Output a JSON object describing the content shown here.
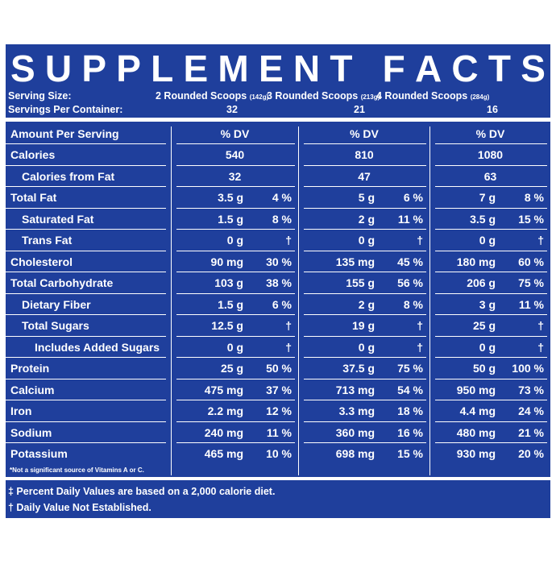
{
  "title": "SUPPLEMENT FACTS",
  "serving": {
    "size_label": "Serving Size:",
    "per_container_label": "Servings Per Container:",
    "sizes": [
      {
        "text": "2 Rounded Scoops",
        "grams": "(142g)",
        "count": "32"
      },
      {
        "text": "3 Rounded Scoops",
        "grams": "(213g)",
        "count": "21"
      },
      {
        "text": "4 Rounded Scoops",
        "grams": "(284g)",
        "count": "16"
      }
    ]
  },
  "header": {
    "amount_label": "Amount Per Serving",
    "dv_label": "% DV"
  },
  "rows": [
    {
      "label": "Calories",
      "indent": 0,
      "single": true,
      "cols": [
        [
          "540"
        ],
        [
          "810"
        ],
        [
          "1080"
        ]
      ]
    },
    {
      "label": "Calories from Fat",
      "indent": 1,
      "single": true,
      "cols": [
        [
          "32"
        ],
        [
          "47"
        ],
        [
          "63"
        ]
      ]
    },
    {
      "label": "Total Fat",
      "indent": 0,
      "cols": [
        [
          "3.5 g",
          "4 %"
        ],
        [
          "5 g",
          "6 %"
        ],
        [
          "7 g",
          "8 %"
        ]
      ]
    },
    {
      "label": "Saturated Fat",
      "indent": 1,
      "cols": [
        [
          "1.5 g",
          "8 %"
        ],
        [
          "2 g",
          "11 %"
        ],
        [
          "3.5 g",
          "15 %"
        ]
      ]
    },
    {
      "label": "Trans Fat",
      "indent": 1,
      "cols": [
        [
          "0 g",
          "†"
        ],
        [
          "0 g",
          "†"
        ],
        [
          "0 g",
          "†"
        ]
      ]
    },
    {
      "label": "Cholesterol",
      "indent": 0,
      "cols": [
        [
          "90 mg",
          "30 %"
        ],
        [
          "135 mg",
          "45 %"
        ],
        [
          "180 mg",
          "60 %"
        ]
      ]
    },
    {
      "label": "Total Carbohydrate",
      "indent": 0,
      "cols": [
        [
          "103 g",
          "38 %"
        ],
        [
          "155 g",
          "56 %"
        ],
        [
          "206 g",
          "75 %"
        ]
      ]
    },
    {
      "label": "Dietary Fiber",
      "indent": 1,
      "cols": [
        [
          "1.5 g",
          "6 %"
        ],
        [
          "2 g",
          "8 %"
        ],
        [
          "3 g",
          "11 %"
        ]
      ]
    },
    {
      "label": "Total Sugars",
      "indent": 1,
      "cols": [
        [
          "12.5 g",
          "†"
        ],
        [
          "19 g",
          "†"
        ],
        [
          "25 g",
          "†"
        ]
      ]
    },
    {
      "label": "Includes Added Sugars",
      "indent": 2,
      "cols": [
        [
          "0 g",
          "†"
        ],
        [
          "0 g",
          "†"
        ],
        [
          "0 g",
          "†"
        ]
      ]
    },
    {
      "label": "Protein",
      "indent": 0,
      "cols": [
        [
          "25 g",
          "50 %"
        ],
        [
          "37.5 g",
          "75 %"
        ],
        [
          "50 g",
          "100 %"
        ]
      ]
    },
    {
      "label": "Calcium",
      "indent": 0,
      "cols": [
        [
          "475 mg",
          "37 %"
        ],
        [
          "713 mg",
          "54 %"
        ],
        [
          "950 mg",
          "73 %"
        ]
      ]
    },
    {
      "label": "Iron",
      "indent": 0,
      "cols": [
        [
          "2.2 mg",
          "12 %"
        ],
        [
          "3.3 mg",
          "18 %"
        ],
        [
          "4.4 mg",
          "24 %"
        ]
      ]
    },
    {
      "label": "Sodium",
      "indent": 0,
      "cols": [
        [
          "240 mg",
          "11 %"
        ],
        [
          "360 mg",
          "16 %"
        ],
        [
          "480 mg",
          "21 %"
        ]
      ]
    },
    {
      "label": "Potassium",
      "indent": 0,
      "cols": [
        [
          "465 mg",
          "10 %"
        ],
        [
          "698 mg",
          "15 %"
        ],
        [
          "930 mg",
          "20 %"
        ]
      ]
    }
  ],
  "footnotes": {
    "vitamins": "*Not a significant source of Vitamins A or C.",
    "daily_values": "‡ Percent Daily Values are based on a 2,000 calorie diet.",
    "not_established": "† Daily Value Not Established."
  },
  "colors": {
    "panel": "#1f3f9c",
    "text": "#ffffff"
  }
}
